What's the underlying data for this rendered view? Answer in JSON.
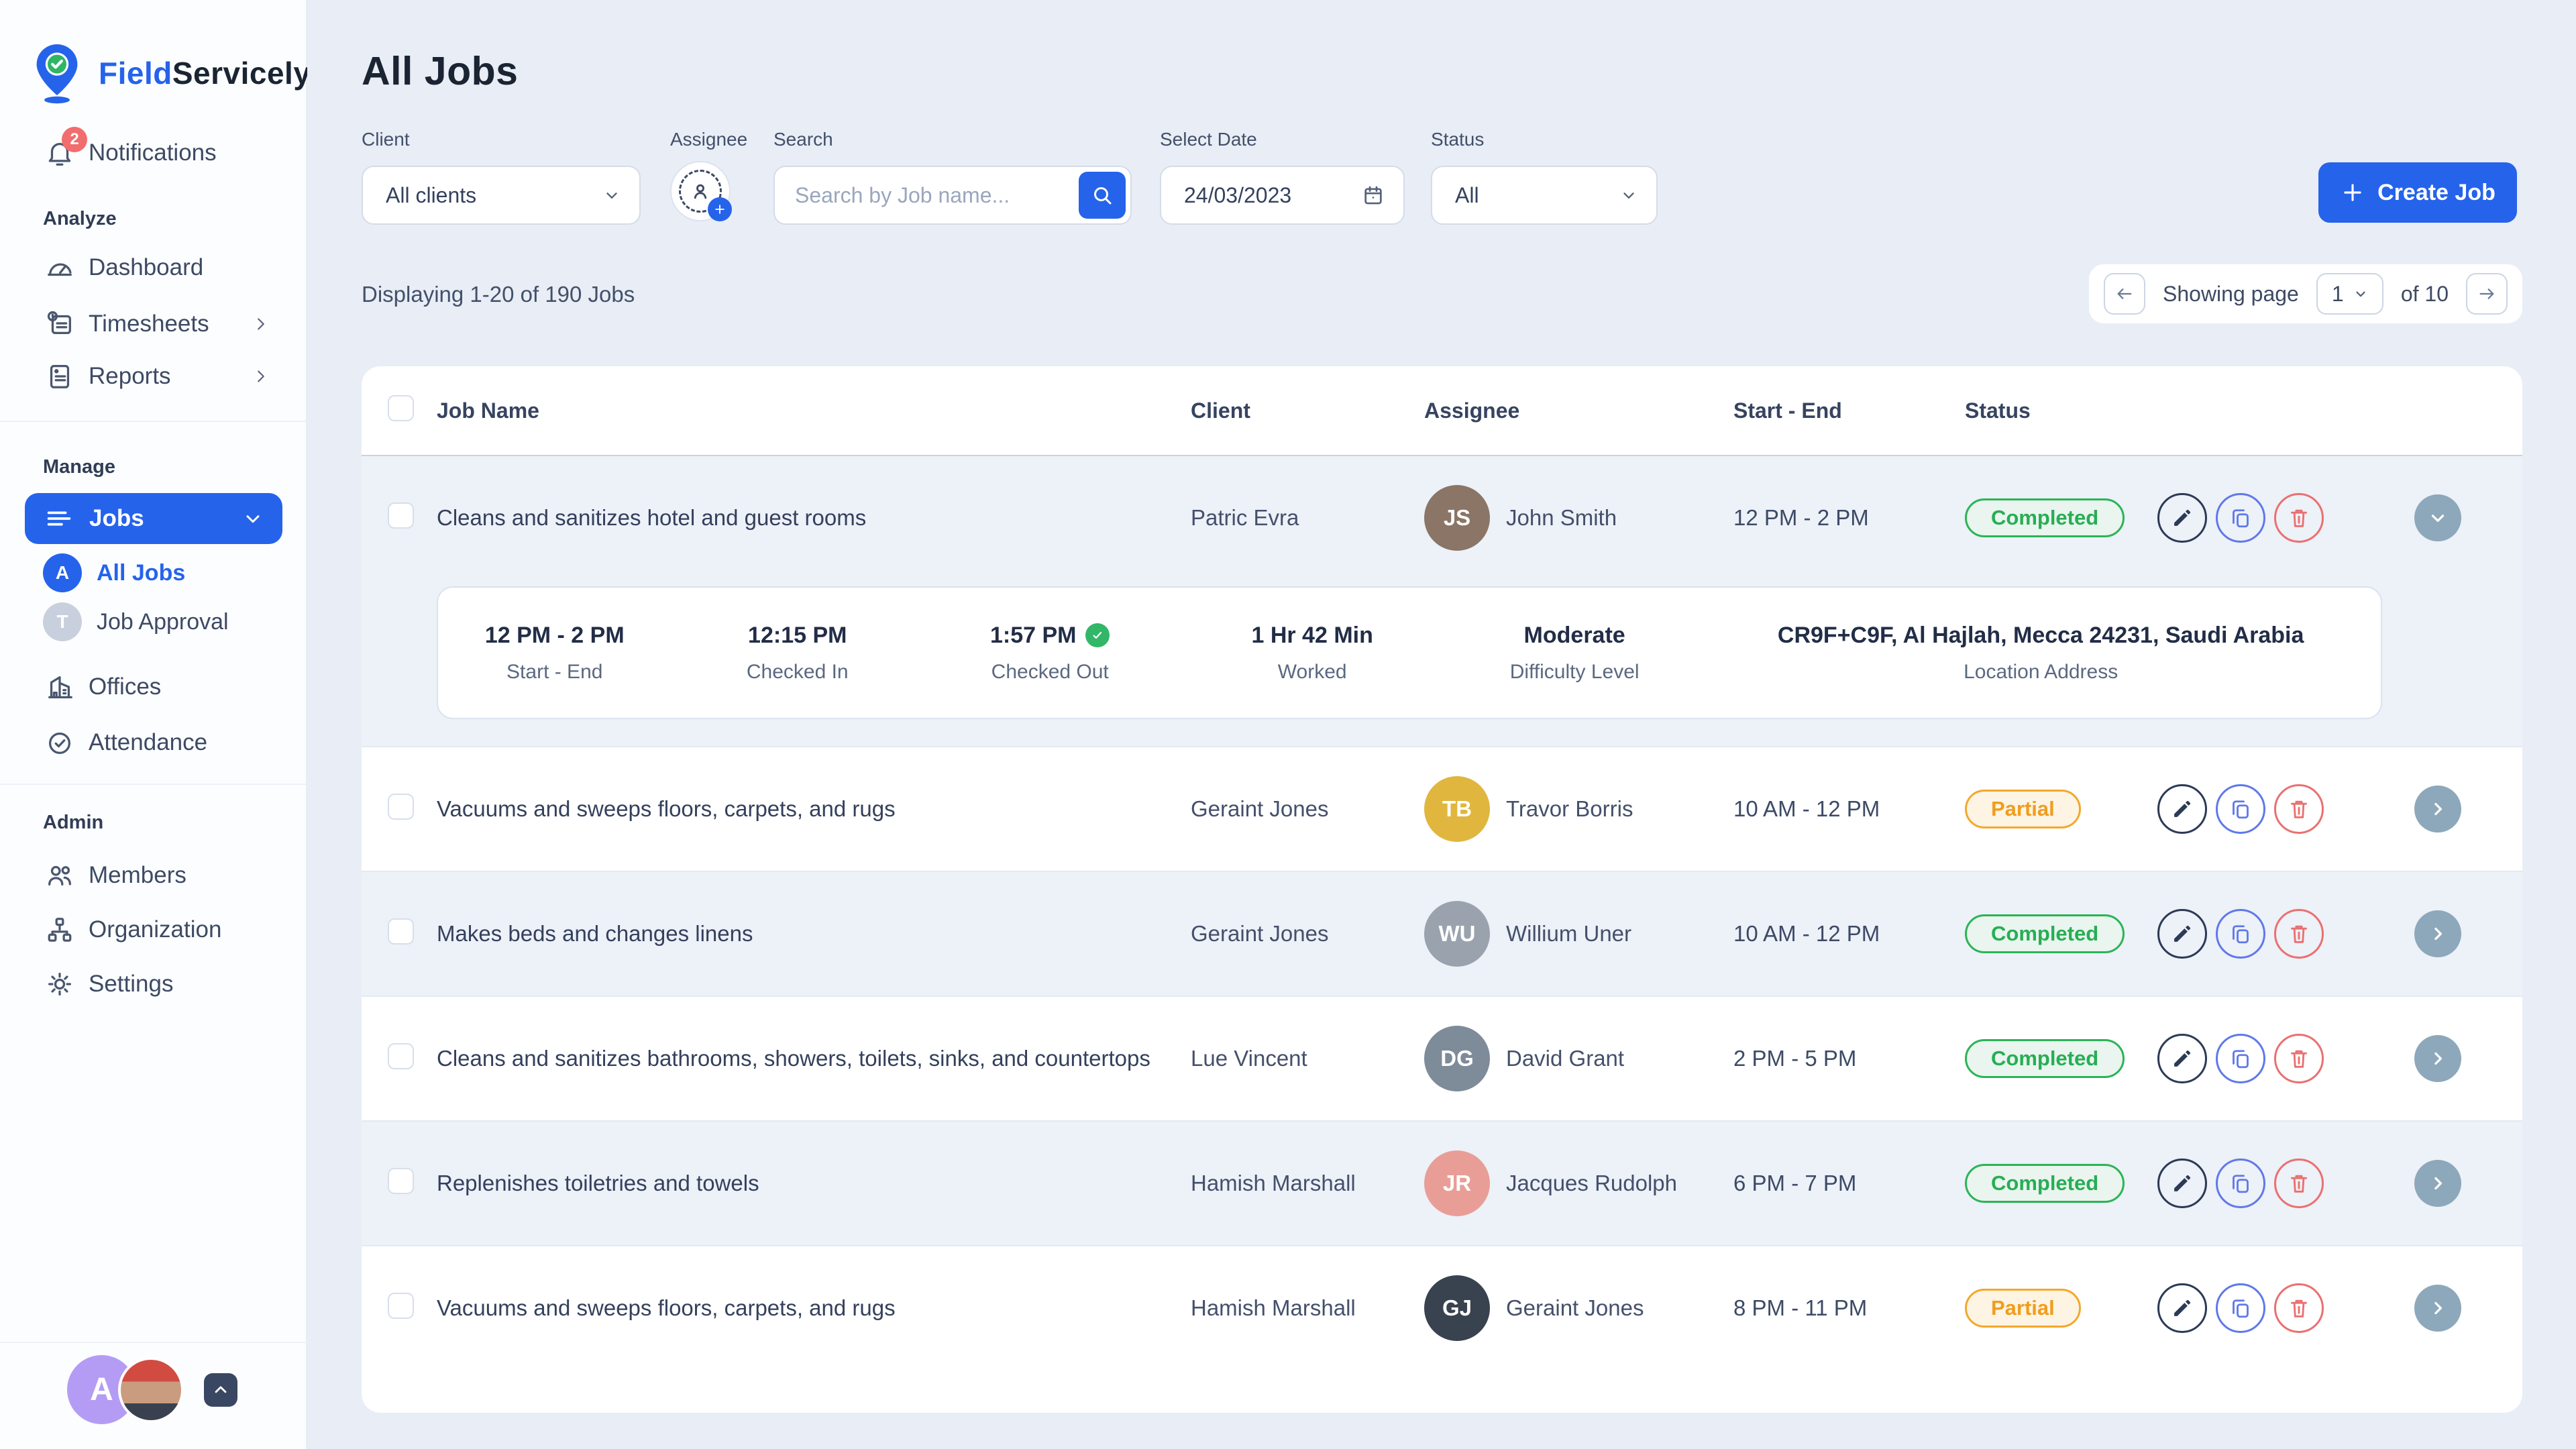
{
  "brand": {
    "field": "Field",
    "servicely": "Servicely"
  },
  "sidebar": {
    "notifications": {
      "label": "Notifications",
      "badge": "2"
    },
    "sections": [
      {
        "title": "Analyze"
      },
      {
        "title": "Manage"
      },
      {
        "title": "Admin"
      }
    ],
    "items": {
      "dashboard": "Dashboard",
      "timesheets": "Timesheets",
      "reports": "Reports",
      "jobs": "Jobs",
      "all_jobs": "All Jobs",
      "all_jobs_badge": "A",
      "job_approval": "Job Approval",
      "job_approval_badge": "T",
      "offices": "Offices",
      "attendance": "Attendance",
      "members": "Members",
      "organization": "Organization",
      "settings": "Settings"
    },
    "profile_initial": "A"
  },
  "page": {
    "title": "All Jobs",
    "summary": "Displaying 1-20 of 190 Jobs"
  },
  "filters": {
    "client_label": "Client",
    "client_value": "All clients",
    "assignee_label": "Assignee",
    "search_label": "Search",
    "search_placeholder": "Search by Job name...",
    "date_label": "Select Date",
    "date_value": "24/03/2023",
    "status_label": "Status",
    "status_value": "All"
  },
  "create_job_label": "Create Job",
  "pagination": {
    "showing": "Showing page",
    "page": "1",
    "of": "of 10"
  },
  "table": {
    "columns": {
      "job": "Job Name",
      "client": "Client",
      "assignee": "Assignee",
      "time": "Start - End",
      "status": "Status"
    },
    "rows": [
      {
        "job": "Cleans and sanitizes hotel and guest rooms",
        "client": "Patric Evra",
        "assignee": "John Smith",
        "initials": "JS",
        "avatar_color": "#8a7566",
        "time": "12 PM - 2 PM",
        "status": "Completed",
        "status_type": "completed",
        "expanded": true
      },
      {
        "job": "Vacuums and sweeps floors, carpets, and rugs",
        "client": "Geraint Jones",
        "assignee": "Travor Borris",
        "initials": "TB",
        "avatar_color": "#e0b63e",
        "time": "10 AM - 12 PM",
        "status": "Partial",
        "status_type": "partial",
        "expanded": false
      },
      {
        "job": "Makes beds and changes linens",
        "client": "Geraint Jones",
        "assignee": "Willium Uner",
        "initials": "WU",
        "avatar_color": "#9aa3ad",
        "time": "10 AM - 12 PM",
        "status": "Completed",
        "status_type": "completed",
        "expanded": false
      },
      {
        "job": "Cleans and sanitizes bathrooms, showers, toilets, sinks, and countertops",
        "client": "Lue Vincent",
        "assignee": "David Grant",
        "initials": "DG",
        "avatar_color": "#7e8b99",
        "time": "2 PM - 5 PM",
        "status": "Completed",
        "status_type": "completed",
        "expanded": false
      },
      {
        "job": "Replenishes toiletries and towels",
        "client": "Hamish Marshall",
        "assignee": "Jacques Rudolph",
        "initials": "JR",
        "avatar_color": "#e89e97",
        "time": "6 PM - 7 PM",
        "status": "Completed",
        "status_type": "completed",
        "expanded": false
      },
      {
        "job": "Vacuums and sweeps floors, carpets, and rugs",
        "client": "Hamish Marshall",
        "assignee": "Geraint Jones",
        "initials": "GJ",
        "avatar_color": "#39424f",
        "time": "8 PM - 11 PM",
        "status": "Partial",
        "status_type": "partial",
        "expanded": false
      }
    ],
    "details": [
      {
        "value": "12 PM - 2 PM",
        "label": "Start - End",
        "check": false
      },
      {
        "value": "12:15 PM",
        "label": "Checked In",
        "check": false
      },
      {
        "value": "1:57 PM",
        "label": "Checked Out",
        "check": true
      },
      {
        "value": "1 Hr 42 Min",
        "label": "Worked",
        "check": false
      },
      {
        "value": "Moderate",
        "label": "Difficulty Level",
        "check": false
      },
      {
        "value": "CR9F+C9F, Al Hajlah, Mecca 24231, Saudi Arabia",
        "label": "Location Address",
        "check": false
      }
    ]
  },
  "colors": {
    "primary": "#2563eb",
    "completed": "#27ae55",
    "partial": "#f09d1c",
    "danger": "#ea7070"
  }
}
